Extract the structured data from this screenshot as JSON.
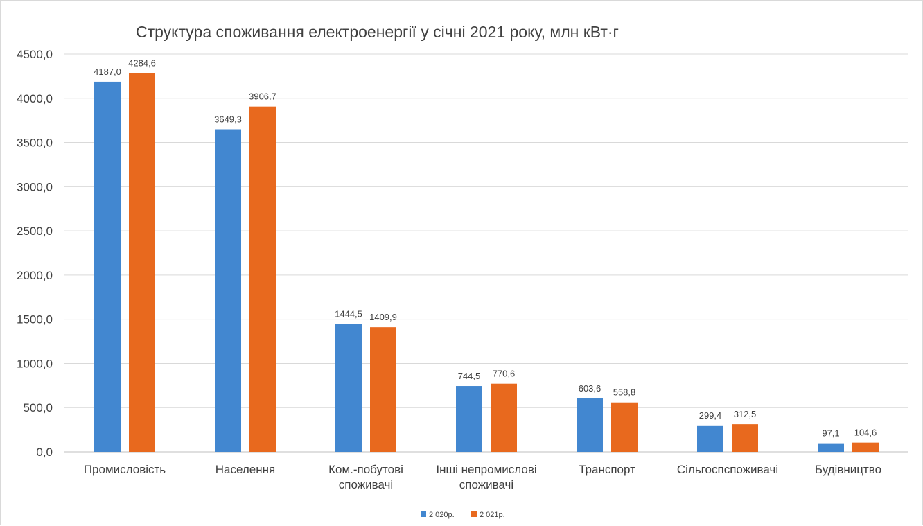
{
  "chart_data": {
    "type": "bar",
    "title": "Структура споживання електроенергії у січні 2021 року, млн кВт·г",
    "xlabel": "",
    "ylabel": "",
    "categories": [
      [
        "Промисловість"
      ],
      [
        "Населення"
      ],
      [
        "Ком.-побутові",
        "споживачі"
      ],
      [
        "Інші непромислові",
        "споживачі"
      ],
      [
        "Транспорт"
      ],
      [
        "Сільгоспспоживачі"
      ],
      [
        "Будівництво"
      ]
    ],
    "series": [
      {
        "name": "2 020р.",
        "color": "#4287d0",
        "values": [
          4187.0,
          3649.3,
          1444.5,
          744.5,
          603.6,
          299.4,
          97.1
        ],
        "labels": [
          "4187,0",
          "3649,3",
          "1444,5",
          "744,5",
          "603,6",
          "299,4",
          "97,1"
        ]
      },
      {
        "name": "2 021р.",
        "color": "#e8691e",
        "values": [
          4284.6,
          3906.7,
          1409.9,
          770.6,
          558.8,
          312.5,
          104.6
        ],
        "labels": [
          "4284,6",
          "3906,7",
          "1409,9",
          "770,6",
          "558,8",
          "312,5",
          "104,6"
        ]
      }
    ],
    "ylim": [
      0,
      4500
    ],
    "yticks": [
      0,
      500,
      1000,
      1500,
      2000,
      2500,
      3000,
      3500,
      4000,
      4500
    ],
    "ytick_labels": [
      "0,0",
      "500,0",
      "1000,0",
      "1500,0",
      "2000,0",
      "2500,0",
      "3000,0",
      "3500,0",
      "4000,0",
      "4500,0"
    ],
    "grid": true,
    "legend_position": "bottom"
  }
}
